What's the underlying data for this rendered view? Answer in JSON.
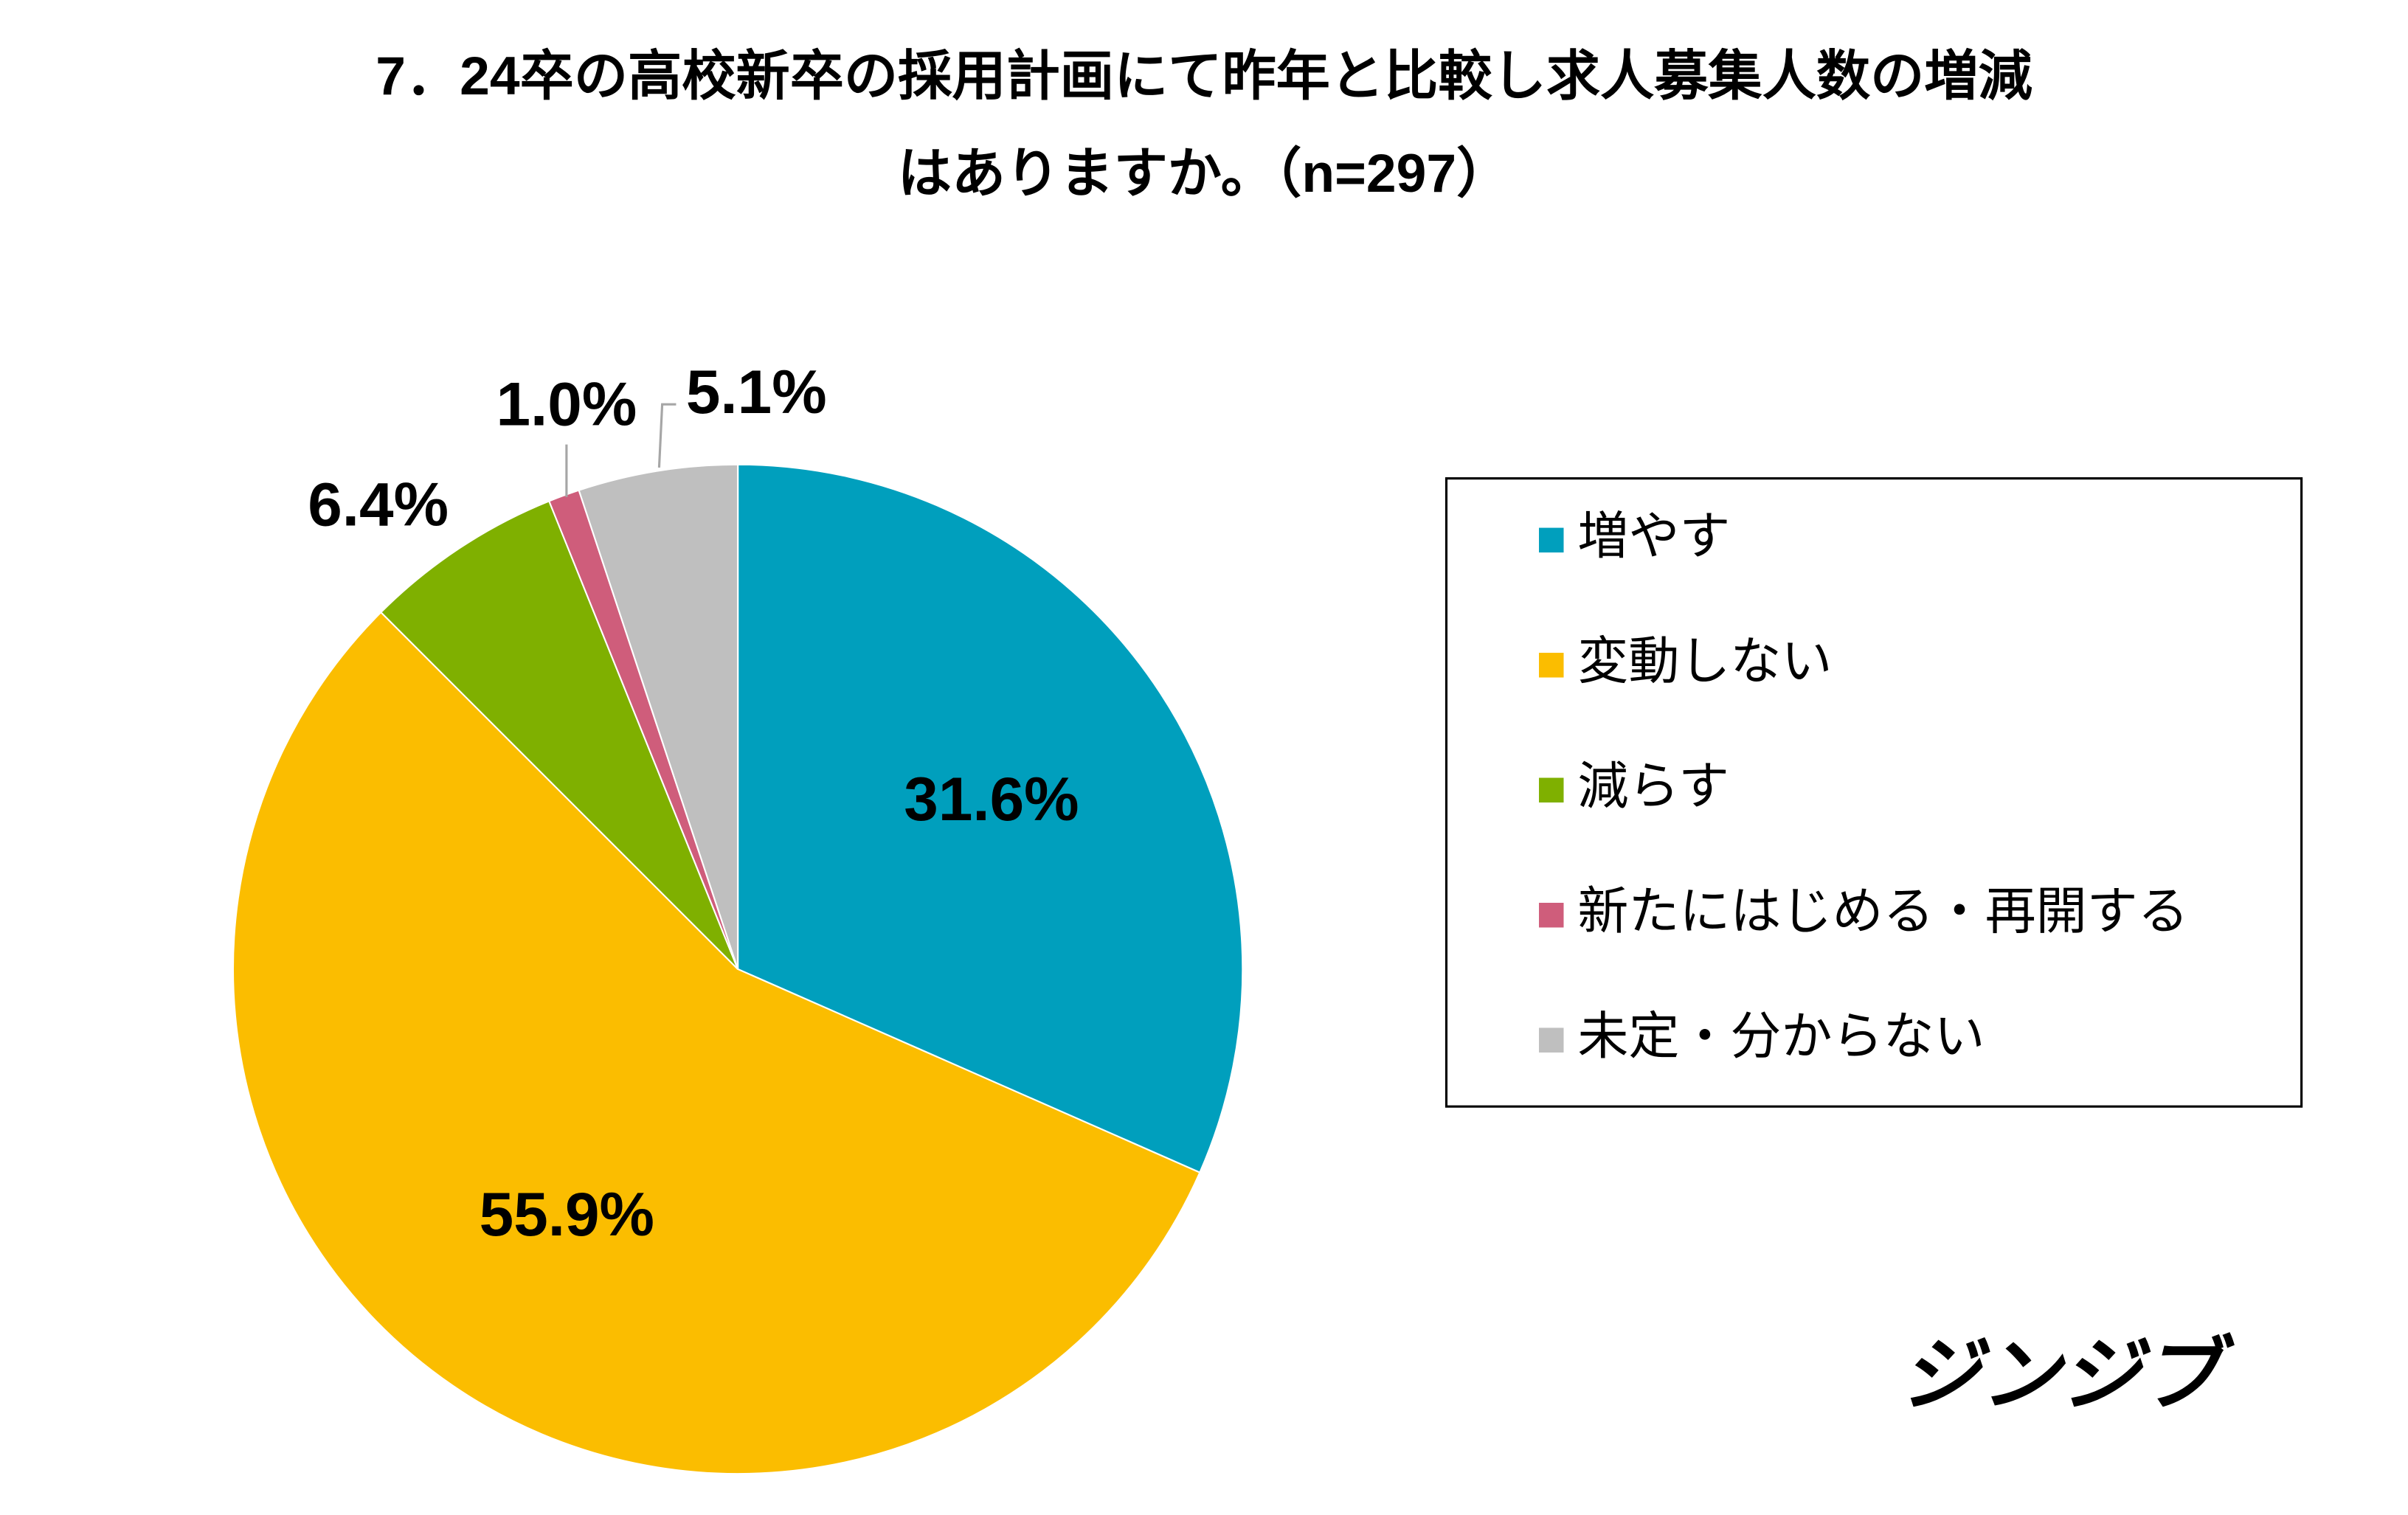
{
  "chart_data": {
    "type": "pie",
    "title": [
      "7．24卒の高校新卒の採用計画にて昨年と比較し求人募集人数の増減",
      "はありますか。（n=297）"
    ],
    "categories": [
      "増やす",
      "変動しない",
      "減らす",
      "新たにはじめる・再開する",
      "未定・分からない"
    ],
    "values": [
      31.6,
      55.9,
      6.4,
      1.0,
      5.1
    ],
    "value_labels": [
      "31.6%",
      "55.9%",
      "6.4%",
      "1.0%",
      "5.1%"
    ],
    "colors": [
      "#009fbd",
      "#fbbd00",
      "#7fb000",
      "#cf5d7b",
      "#bfbfbf"
    ],
    "legend": "right",
    "brand": "ジンジブ"
  }
}
